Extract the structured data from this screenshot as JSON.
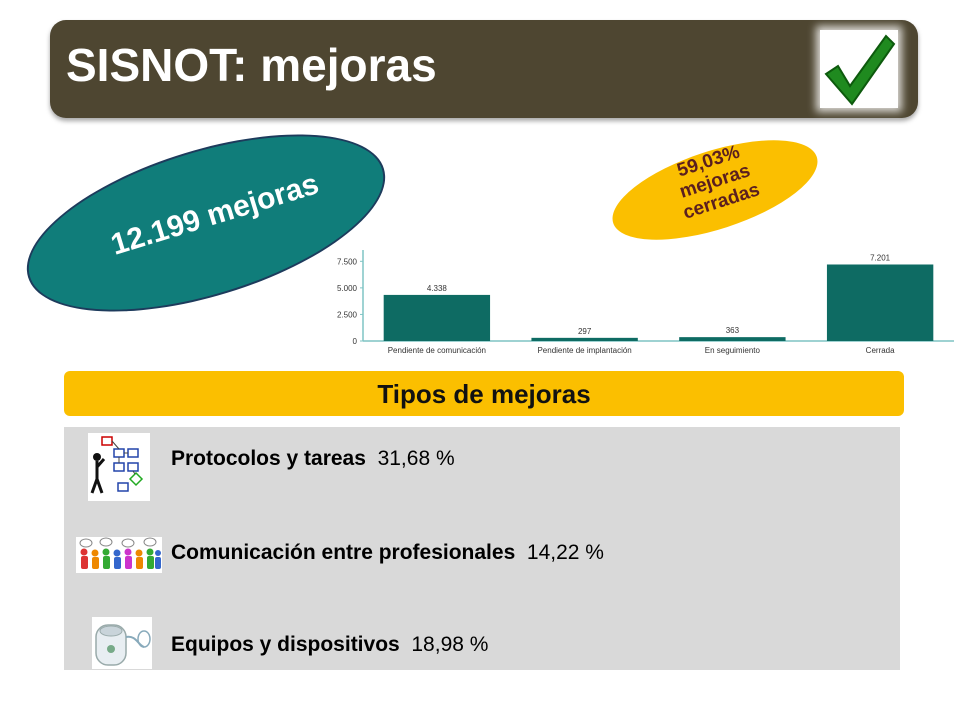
{
  "header": {
    "title": "SISNOT: mejoras"
  },
  "total_ellipse": {
    "text": "12.199 mejoras"
  },
  "closed_ellipse": {
    "lines": [
      "59,03%",
      "mejoras",
      "cerradas"
    ]
  },
  "chart_data": {
    "type": "bar",
    "categories": [
      "Pendiente de comunicación",
      "Pendiente de implantación",
      "En seguimiento",
      "Cerrada"
    ],
    "values": [
      4338,
      297,
      363,
      7201
    ],
    "value_labels": [
      "4.338",
      "297",
      "363",
      "7.201"
    ],
    "yticks": [
      0,
      2500,
      5000,
      7500
    ],
    "ytick_labels": [
      "0",
      "2.500",
      "5.000",
      "7.500"
    ],
    "ylim": [
      0,
      8000
    ],
    "title": "",
    "xlabel": "",
    "ylabel": "",
    "bar_color": "#0e6b63",
    "axis_color": "#7fc4c4"
  },
  "types": {
    "header": "Tipos de mejoras",
    "items": [
      {
        "name": "Protocolos y tareas",
        "pct": "31,68 %",
        "icon": "flowchart-icon"
      },
      {
        "name": "Comunicación entre profesionales",
        "pct": "14,22 %",
        "icon": "people-talking-icon"
      },
      {
        "name": "Equipos y dispositivos",
        "pct": "18,98 %",
        "icon": "medical-device-icon"
      }
    ]
  },
  "colors": {
    "title_bar": "#4e4631",
    "teal": "#107d7a",
    "amber": "#fbbf00",
    "panel": "#d9d9d9"
  }
}
